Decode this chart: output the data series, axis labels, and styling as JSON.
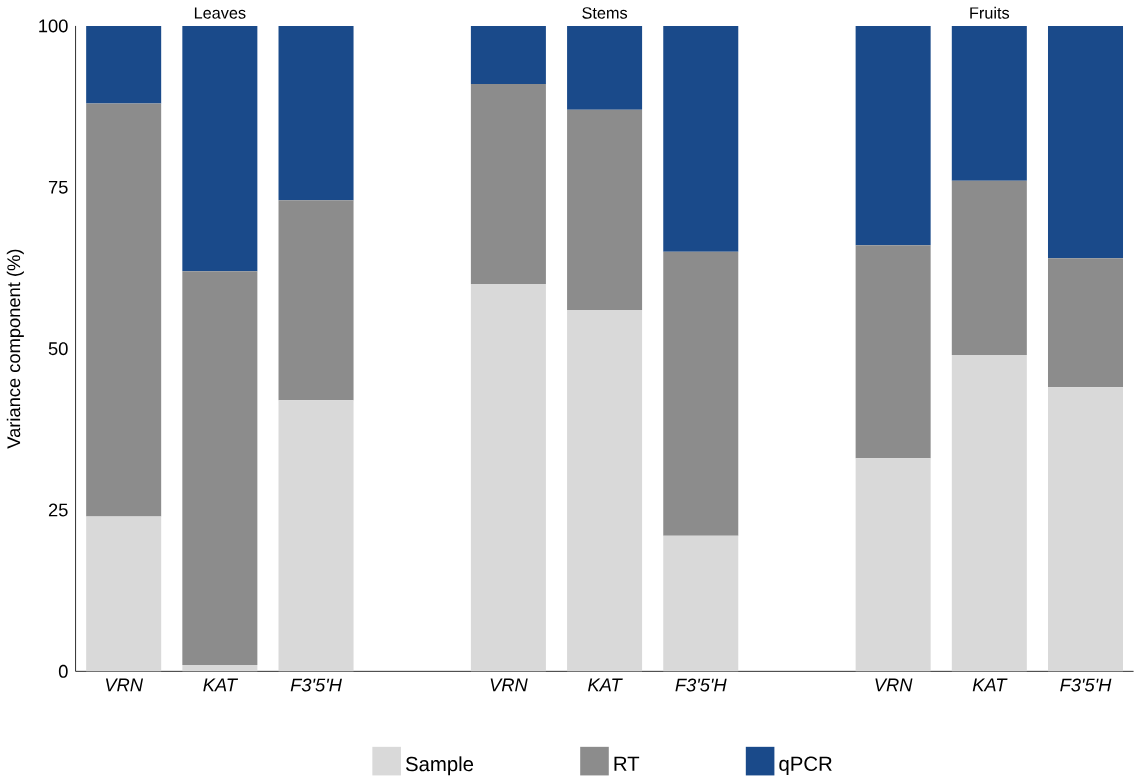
{
  "chart_data": {
    "type": "bar",
    "stacked": true,
    "ylabel": "Variance component (%)",
    "categories": [
      "VRN",
      "KAT",
      "F3'5'H",
      null,
      "VRN",
      "KAT",
      "F3'5'H",
      null,
      "VRN",
      "KAT",
      "F3'5'H"
    ],
    "series": [
      {
        "name": "Sample",
        "color": "#d9d9d9",
        "values": [
          24,
          1,
          42,
          null,
          60,
          56,
          21,
          null,
          33,
          49,
          44
        ]
      },
      {
        "name": "RT",
        "color": "#8c8c8c",
        "values": [
          64,
          61,
          31,
          null,
          31,
          31,
          44,
          null,
          33,
          27,
          20
        ]
      },
      {
        "name": "qPCR",
        "color": "#1a4a8a",
        "values": [
          12,
          38,
          27,
          null,
          9,
          13,
          35,
          null,
          34,
          24,
          36
        ]
      }
    ],
    "ylim": [
      0,
      100
    ],
    "yticks": [
      0,
      25,
      50,
      75,
      100
    ],
    "legend": "bottom",
    "annotations": [
      "Leaves",
      "Stems",
      "Fruits"
    ]
  }
}
